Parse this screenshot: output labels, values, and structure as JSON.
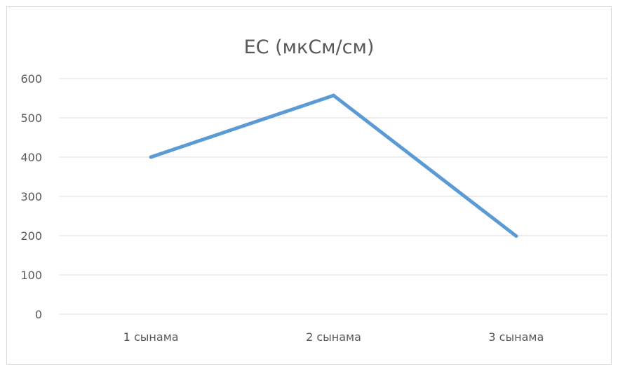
{
  "chart_data": {
    "type": "line",
    "title": "EC (мкСм/см)",
    "categories": [
      "1 сынама",
      "2 сынама",
      "3 сынама"
    ],
    "series": [
      {
        "values": [
          400,
          557,
          199
        ],
        "color": "#5b9bd5"
      }
    ],
    "ylim": [
      0,
      600
    ],
    "yticks": [
      "0",
      "100",
      "200",
      "300",
      "400",
      "500",
      "600"
    ],
    "grid": true,
    "legend": "none",
    "colors": {
      "grid": "#d9d9d9",
      "text": "#595959",
      "line": "#5b9bd5"
    }
  }
}
